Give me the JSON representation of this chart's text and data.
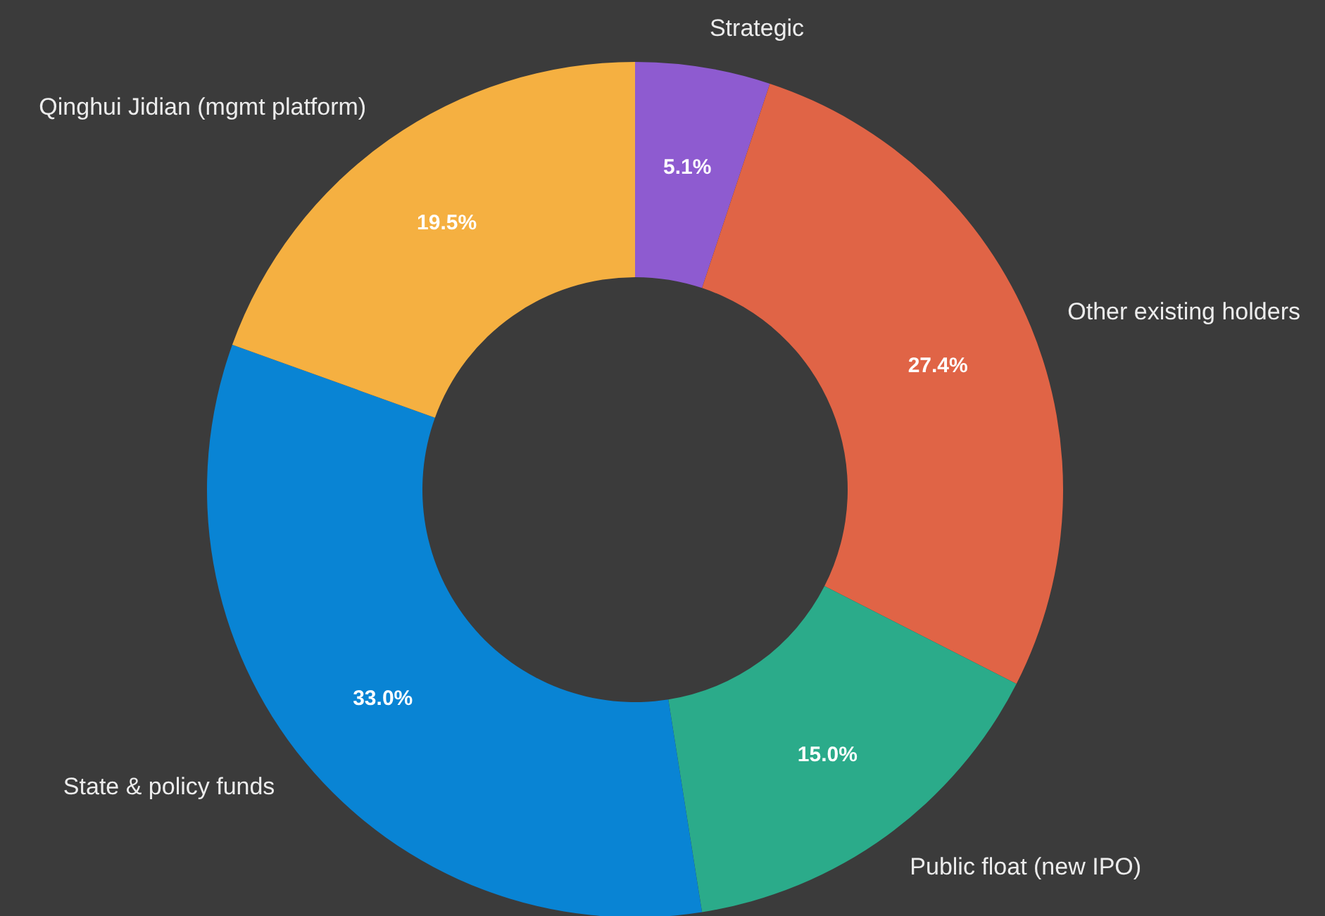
{
  "chart_data": {
    "type": "donut",
    "categories": [
      "Strategic",
      "Other existing holders",
      "Public float (new IPO)",
      "State & policy funds",
      "Qinghui Jidian (mgmt platform)"
    ],
    "values": [
      5.1,
      27.4,
      15.0,
      33.0,
      19.5
    ],
    "colors": [
      "#8e5bd0",
      "#e06446",
      "#2bab8a",
      "#0984d4",
      "#f5b041"
    ],
    "value_labels": [
      "5.1%",
      "27.4%",
      "15.0%",
      "33.0%",
      "19.5%"
    ]
  }
}
